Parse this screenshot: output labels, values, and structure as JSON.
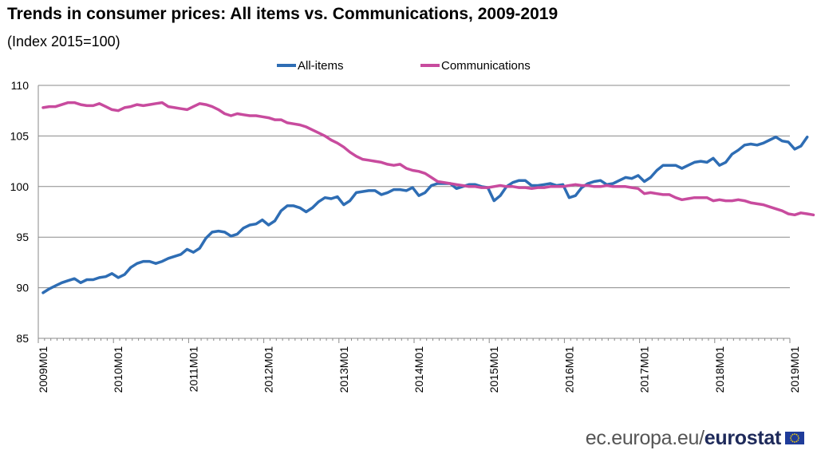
{
  "chart_data": {
    "type": "line",
    "title": "Trends in consumer prices: All items vs. Communications, 2009-2019",
    "subtitle": "(Index 2015=100)",
    "xlabel": "",
    "ylabel": "",
    "ylim": [
      85,
      110
    ],
    "yticks": [
      "85",
      "90",
      "95",
      "100",
      "105",
      "110"
    ],
    "x_tick_labels": [
      "2009M01",
      "2010M01",
      "2011M01",
      "2012M01",
      "2013M01",
      "2014M01",
      "2015M01",
      "2016M01",
      "2017M01",
      "2018M01",
      "2019M01"
    ],
    "x_start": "2009M01",
    "legend_position": "top-center",
    "grid": "horizontal",
    "series": [
      {
        "name": "All-items",
        "color": "#2e6db4",
        "values": [
          89.5,
          89.9,
          90.2,
          90.5,
          90.7,
          90.9,
          90.5,
          90.8,
          90.8,
          91.0,
          91.1,
          91.4,
          91.0,
          91.3,
          92.0,
          92.4,
          92.6,
          92.6,
          92.4,
          92.6,
          92.9,
          93.1,
          93.3,
          93.8,
          93.5,
          93.9,
          94.9,
          95.5,
          95.6,
          95.5,
          95.1,
          95.3,
          95.9,
          96.2,
          96.3,
          96.7,
          96.2,
          96.6,
          97.6,
          98.1,
          98.1,
          97.9,
          97.5,
          97.9,
          98.5,
          98.9,
          98.8,
          99.0,
          98.2,
          98.6,
          99.4,
          99.5,
          99.6,
          99.6,
          99.2,
          99.4,
          99.7,
          99.7,
          99.6,
          99.9,
          99.1,
          99.4,
          100.1,
          100.3,
          100.3,
          100.3,
          99.8,
          100.0,
          100.2,
          100.2,
          100.0,
          99.9,
          98.6,
          99.1,
          100.0,
          100.4,
          100.6,
          100.6,
          100.1,
          100.1,
          100.2,
          100.3,
          100.1,
          100.2,
          98.9,
          99.1,
          99.9,
          100.3,
          100.5,
          100.6,
          100.2,
          100.3,
          100.6,
          100.9,
          100.8,
          101.1,
          100.5,
          100.9,
          101.6,
          102.1,
          102.1,
          102.1,
          101.8,
          102.1,
          102.4,
          102.5,
          102.4,
          102.8,
          102.1,
          102.4,
          103.2,
          103.6,
          104.1,
          104.2,
          104.1,
          104.3,
          104.6,
          104.9,
          104.5,
          104.4,
          103.7,
          104.0,
          104.9
        ]
      },
      {
        "name": "Communications",
        "color": "#c84b9e",
        "values": [
          107.8,
          107.9,
          107.9,
          108.1,
          108.3,
          108.3,
          108.1,
          108.0,
          108.0,
          108.2,
          107.9,
          107.6,
          107.5,
          107.8,
          107.9,
          108.1,
          108.0,
          108.1,
          108.2,
          108.3,
          107.9,
          107.8,
          107.7,
          107.6,
          107.9,
          108.2,
          108.1,
          107.9,
          107.6,
          107.2,
          107.0,
          107.2,
          107.1,
          107.0,
          107.0,
          106.9,
          106.8,
          106.6,
          106.6,
          106.3,
          106.2,
          106.1,
          105.9,
          105.6,
          105.3,
          105.0,
          104.6,
          104.3,
          103.9,
          103.4,
          103.0,
          102.7,
          102.6,
          102.5,
          102.4,
          102.2,
          102.1,
          102.2,
          101.8,
          101.6,
          101.5,
          101.3,
          100.9,
          100.5,
          100.4,
          100.3,
          100.2,
          100.1,
          100.0,
          100.0,
          99.9,
          99.9,
          100.0,
          100.1,
          100.0,
          100.0,
          99.9,
          99.9,
          99.8,
          99.9,
          99.9,
          100.0,
          100.0,
          100.0,
          100.1,
          100.2,
          100.1,
          100.1,
          100.0,
          100.0,
          100.1,
          100.0,
          100.0,
          100.0,
          99.9,
          99.8,
          99.3,
          99.4,
          99.3,
          99.2,
          99.2,
          98.9,
          98.7,
          98.8,
          98.9,
          98.9,
          98.9,
          98.6,
          98.7,
          98.6,
          98.6,
          98.7,
          98.6,
          98.4,
          98.3,
          98.2,
          98.0,
          97.8,
          97.6,
          97.3,
          97.2,
          97.4,
          97.3,
          97.2
        ]
      }
    ]
  },
  "footer": {
    "source": "ec.europa.eu/",
    "brand": "eurostat",
    "flag_colors": {
      "field": "#1f3c9a",
      "stars": "#f5d20a"
    }
  }
}
